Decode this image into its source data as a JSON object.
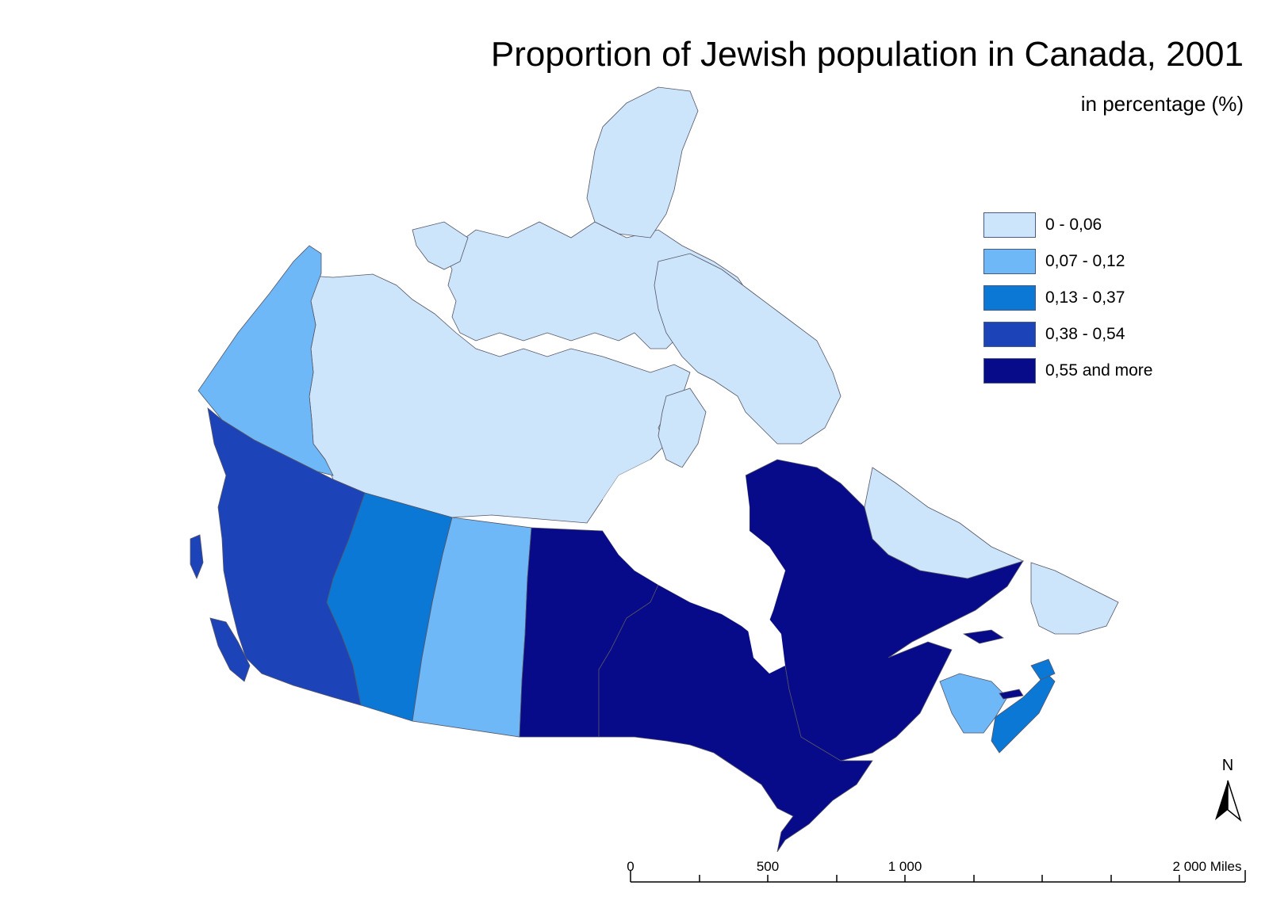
{
  "title": "Proportion of Jewish population in Canada, 2001",
  "subtitle": "in percentage (%)",
  "legend": [
    {
      "label": "0 - 0,06",
      "color": "#cce5fb"
    },
    {
      "label": "0,07 - 0,12",
      "color": "#6fb8f7"
    },
    {
      "label": "0,13 - 0,37",
      "color": "#0b78d6"
    },
    {
      "label": "0,38 - 0,54",
      "color": "#1c44b8"
    },
    {
      "label": "0,55 and more",
      "color": "#070b8a"
    }
  ],
  "regions": [
    {
      "name": "Yukon",
      "class": "0,07 - 0,12"
    },
    {
      "name": "Northwest Territories and Nunavut",
      "class": "0 - 0,06"
    },
    {
      "name": "British Columbia",
      "class": "0,38 - 0,54"
    },
    {
      "name": "Alberta",
      "class": "0,13 - 0,37"
    },
    {
      "name": "Saskatchewan",
      "class": "0,07 - 0,12"
    },
    {
      "name": "Manitoba",
      "class": "0,55 and more"
    },
    {
      "name": "Ontario",
      "class": "0,55 and more"
    },
    {
      "name": "Quebec",
      "class": "0,55 and more"
    },
    {
      "name": "Newfoundland and Labrador",
      "class": "0 - 0,06"
    },
    {
      "name": "New Brunswick",
      "class": "0,07 - 0,12"
    },
    {
      "name": "Nova Scotia",
      "class": "0,13 - 0,37"
    },
    {
      "name": "Prince Edward Island",
      "class": "0,55 and more"
    }
  ],
  "north_arrow": {
    "letter": "N"
  },
  "scale_bar": {
    "labels": [
      "0",
      "500",
      "1 000",
      "2 000 Miles"
    ]
  }
}
